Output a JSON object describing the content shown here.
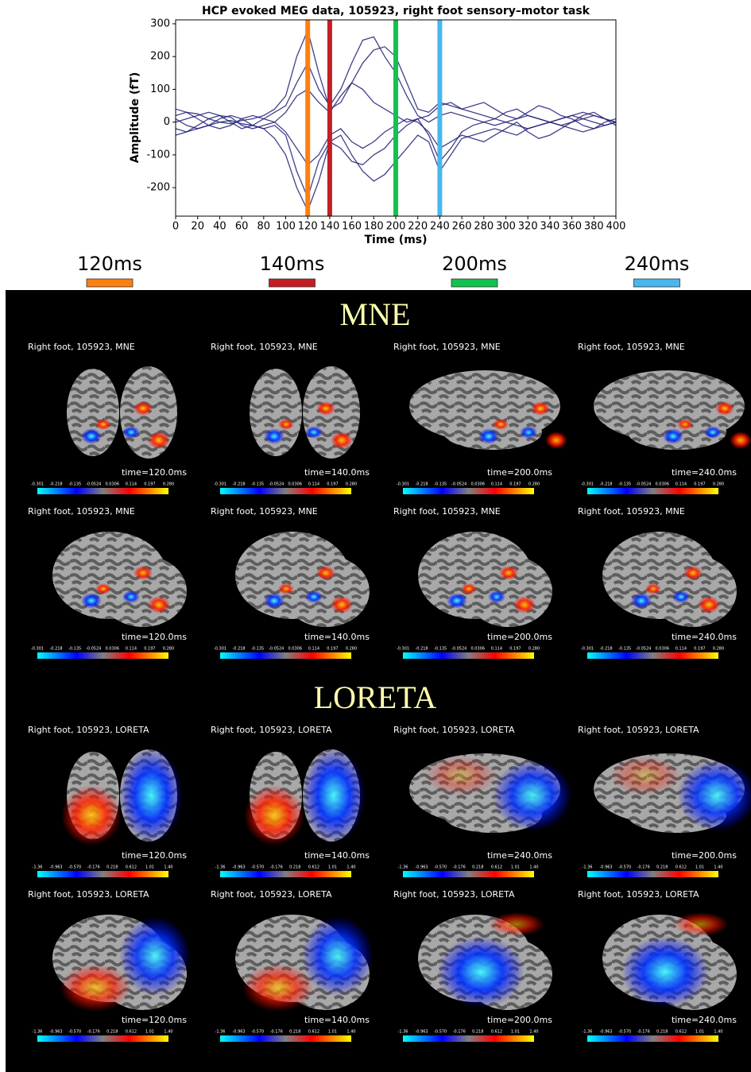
{
  "chart_data": {
    "type": "line",
    "title": "HCP evoked MEG data, 105923, right foot sensory–motor task",
    "xlabel": "Time (ms)",
    "ylabel": "Amplitude (fT)",
    "xlim": [
      0,
      400
    ],
    "ylim": [
      -287,
      312
    ],
    "xticks": [
      0,
      20,
      40,
      60,
      80,
      100,
      120,
      140,
      160,
      180,
      200,
      220,
      240,
      260,
      280,
      300,
      320,
      340,
      360,
      380,
      400
    ],
    "yticks": [
      -200,
      -100,
      0,
      100,
      200,
      300
    ],
    "x": [
      0,
      10,
      20,
      30,
      40,
      50,
      60,
      70,
      80,
      90,
      100,
      110,
      120,
      130,
      140,
      150,
      160,
      170,
      180,
      190,
      200,
      210,
      220,
      230,
      240,
      250,
      260,
      270,
      280,
      290,
      300,
      310,
      320,
      330,
      340,
      350,
      360,
      370,
      380,
      390,
      400
    ],
    "series": [
      {
        "color": "#1f1f75",
        "values": [
          20,
          30,
          25,
          10,
          0,
          -5,
          5,
          10,
          20,
          40,
          80,
          200,
          280,
          150,
          40,
          60,
          120,
          180,
          220,
          230,
          200,
          120,
          40,
          30,
          60,
          50,
          40,
          30,
          20,
          10,
          30,
          40,
          20,
          10,
          0,
          10,
          20,
          30,
          20,
          10,
          0
        ]
      },
      {
        "color": "#1f1f75",
        "values": [
          -20,
          -30,
          -20,
          -10,
          0,
          5,
          -5,
          -10,
          -20,
          -50,
          -100,
          -200,
          -270,
          -180,
          -60,
          -40,
          -100,
          -150,
          -180,
          -160,
          -120,
          -80,
          -40,
          -60,
          -150,
          -100,
          -50,
          -40,
          -30,
          -20,
          -30,
          -40,
          -20,
          -10,
          0,
          -10,
          -20,
          -30,
          -20,
          -10,
          0
        ]
      },
      {
        "color": "#1f1f75",
        "values": [
          40,
          30,
          10,
          -10,
          -20,
          -10,
          10,
          20,
          10,
          0,
          30,
          80,
          100,
          60,
          30,
          80,
          120,
          100,
          60,
          40,
          20,
          0,
          10,
          20,
          50,
          60,
          40,
          50,
          60,
          40,
          20,
          10,
          30,
          50,
          40,
          20,
          10,
          -10,
          -20,
          0,
          10
        ]
      },
      {
        "color": "#1f1f75",
        "values": [
          -40,
          -30,
          -10,
          10,
          20,
          15,
          -10,
          -20,
          -10,
          0,
          -30,
          -80,
          -130,
          -100,
          -40,
          -20,
          -60,
          -80,
          -60,
          -30,
          -10,
          10,
          0,
          -30,
          -80,
          -60,
          -40,
          -50,
          -60,
          -40,
          -20,
          0,
          -30,
          -50,
          -40,
          -20,
          0,
          20,
          30,
          10,
          -10
        ]
      },
      {
        "color": "#1f1f75",
        "values": [
          0,
          10,
          20,
          30,
          20,
          0,
          -20,
          -10,
          10,
          30,
          50,
          120,
          180,
          100,
          50,
          100,
          180,
          250,
          260,
          200,
          150,
          80,
          20,
          0,
          20,
          30,
          20,
          10,
          0,
          -10,
          0,
          10,
          20,
          10,
          0,
          -10,
          0,
          10,
          20,
          10,
          0
        ]
      },
      {
        "color": "#1f1f75",
        "values": [
          10,
          -10,
          -20,
          -10,
          10,
          20,
          10,
          -10,
          -20,
          -10,
          -40,
          -150,
          -230,
          -120,
          -60,
          -80,
          -120,
          -130,
          -100,
          -80,
          -40,
          -10,
          10,
          -40,
          -120,
          -80,
          -30,
          -10,
          0,
          10,
          0,
          -10,
          -20,
          -10,
          0,
          10,
          20,
          10,
          0,
          -10,
          0
        ]
      }
    ],
    "markers": [
      {
        "x": 120,
        "label": "120ms",
        "color": "#ff7f0e"
      },
      {
        "x": 140,
        "label": "140ms",
        "color": "#c41e24"
      },
      {
        "x": 200,
        "label": "200ms",
        "color": "#12c24f"
      },
      {
        "x": 240,
        "label": "240ms",
        "color": "#48b7ee"
      }
    ]
  },
  "sections": [
    {
      "title": "MNE",
      "colorbar_ticks": [
        "-0.301",
        "-0.218",
        "-0.135",
        "-0.0524",
        "0.0306",
        "0.114",
        "0.197",
        "0.280"
      ],
      "panels": [
        {
          "caption": "Right foot, 105923, MNE",
          "time": "time=120.0ms"
        },
        {
          "caption": "Right foot, 105923, MNE",
          "time": "time=140.0ms"
        },
        {
          "caption": "Right foot, 105923, MNE",
          "time": "time=200.0ms"
        },
        {
          "caption": "Right foot, 105923, MNE",
          "time": "time=240.0ms"
        },
        {
          "caption": "Right foot, 105923, MNE",
          "time": "time=120.0ms"
        },
        {
          "caption": "Right foot, 105923, MNE",
          "time": "time=140.0ms"
        },
        {
          "caption": "Right foot, 105923, MNE",
          "time": "time=200.0ms"
        },
        {
          "caption": "Right foot, 105923, MNE",
          "time": "time=240.0ms"
        }
      ]
    },
    {
      "title": "LORETA",
      "colorbar_ticks": [
        "-1.36",
        "-0.963",
        "-0.570",
        "-0.176",
        "0.218",
        "0.612",
        "1.01",
        "1.40"
      ],
      "panels": [
        {
          "caption": "Right foot, 105923, LORETA",
          "time": "time=120.0ms"
        },
        {
          "caption": "Right foot, 105923, LORETA",
          "time": "time=140.0ms"
        },
        {
          "caption": "Right foot, 105923, LORETA",
          "time": "time=240.0ms"
        },
        {
          "caption": "Right foot, 105923, LORETA",
          "time": "time=200.0ms"
        },
        {
          "caption": "Right foot, 105923, LORETA",
          "time": "time=120.0ms"
        },
        {
          "caption": "Right foot, 105923, LORETA",
          "time": "time=140.0ms"
        },
        {
          "caption": "Right foot, 105923, LORETA",
          "time": "time=200.0ms"
        },
        {
          "caption": "Right foot, 105923, LORETA",
          "time": "time=240.0ms"
        }
      ]
    }
  ]
}
